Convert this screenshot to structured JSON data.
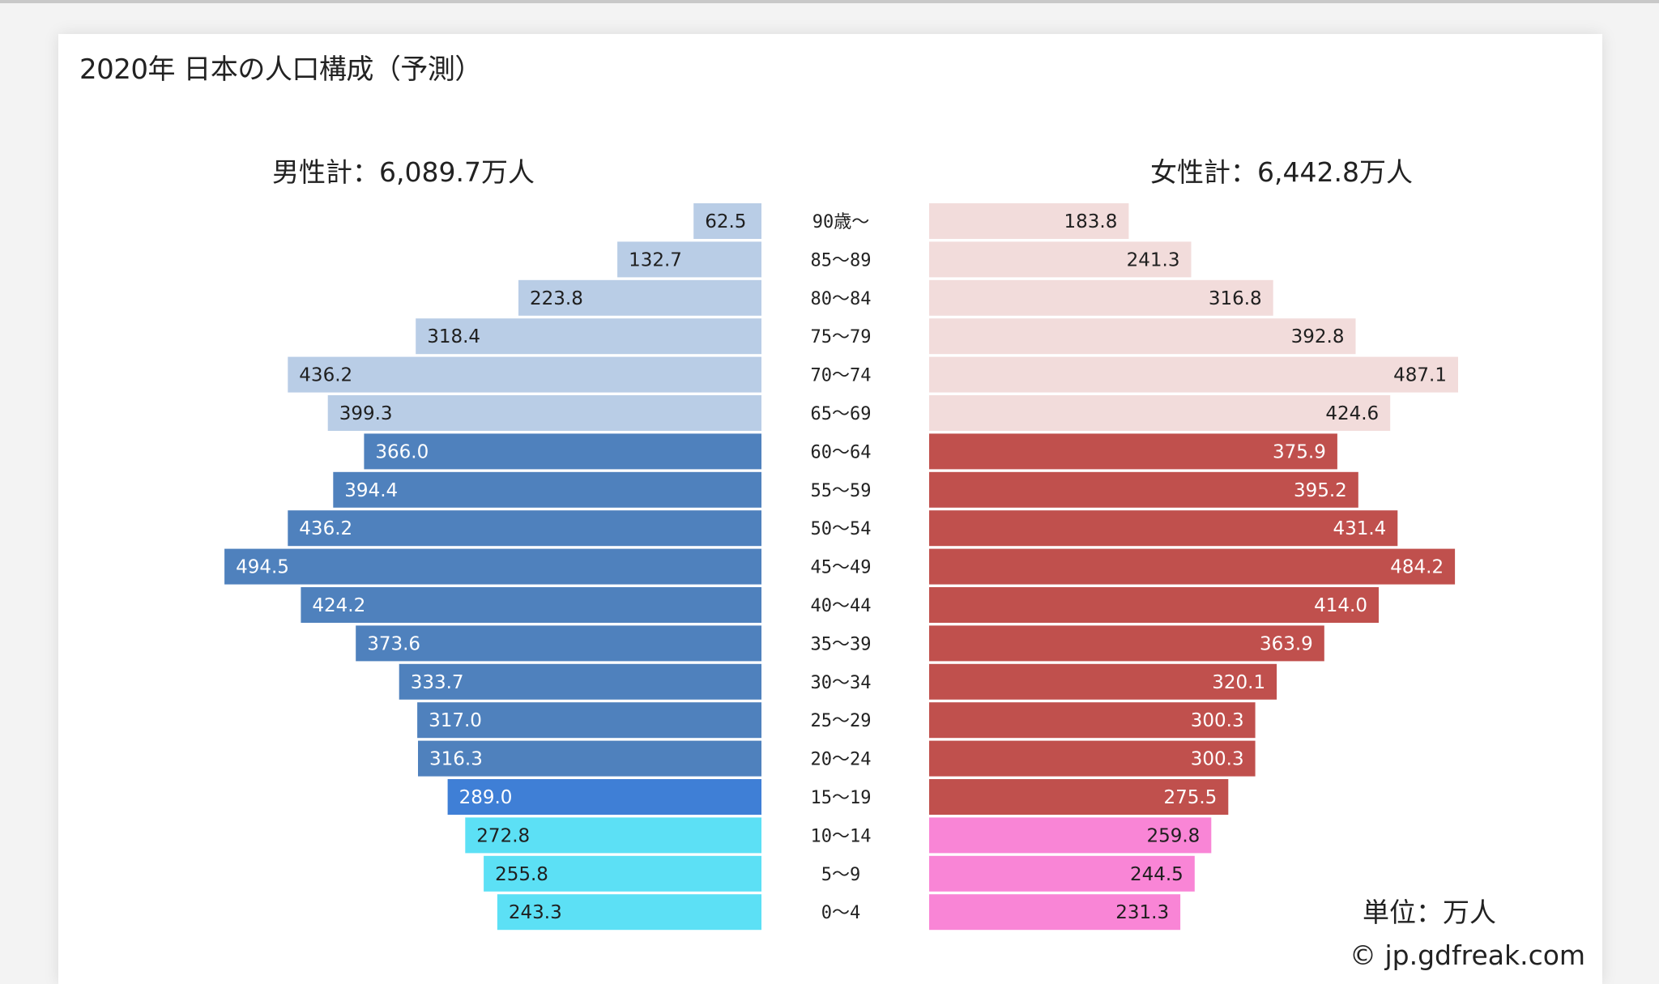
{
  "chart_data": {
    "type": "bar",
    "title": "2020年 日本の人口構成（予測）",
    "unit_label": "単位：万人",
    "credit": "© jp.gdfreak.com",
    "categories": [
      "90歳～",
      "85～89",
      "80～84",
      "75～79",
      "70～74",
      "65～69",
      "60～64",
      "55～59",
      "50～54",
      "45～49",
      "40～44",
      "35～39",
      "30～34",
      "25～29",
      "20～24",
      "15～19",
      "10～14",
      "5～9",
      "0～4"
    ],
    "series": [
      {
        "name": "男性",
        "total_label": "男性計：6,089.7万人",
        "values": [
          62.5,
          132.7,
          223.8,
          318.4,
          436.2,
          399.3,
          366.0,
          394.4,
          436.2,
          494.5,
          424.2,
          373.6,
          333.7,
          317.0,
          316.3,
          289.0,
          272.8,
          255.8,
          243.3
        ]
      },
      {
        "name": "女性",
        "total_label": "女性計：6,442.8万人",
        "values": [
          183.8,
          241.3,
          316.8,
          392.8,
          487.1,
          424.6,
          375.9,
          395.2,
          431.4,
          484.2,
          414.0,
          363.9,
          320.1,
          300.3,
          300.3,
          275.5,
          259.8,
          244.5,
          231.3
        ]
      }
    ],
    "colors": {
      "male_elderly": "#b9cde6",
      "male_working": "#4f81bd",
      "male_15_19": "#3f7fd6",
      "male_children": "#5ce0f5",
      "female_elderly": "#f2dcdb",
      "female_working": "#c0504d",
      "female_children": "#f985d6",
      "label_dark": "#1f1f1f",
      "label_light": "#ffffff"
    }
  }
}
